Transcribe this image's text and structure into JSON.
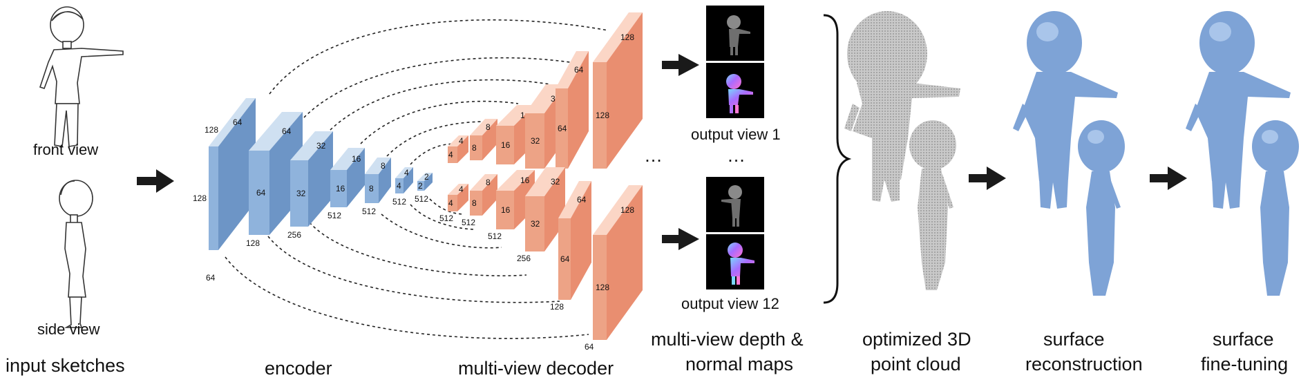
{
  "labels": {
    "input_sketches": "input sketches",
    "front_view": "front view",
    "side_view": "side view",
    "encoder": "encoder",
    "decoder": "multi-view decoder",
    "output_view_1": "output view 1",
    "output_view_12": "output view 12",
    "maps_line1": "multi-view depth &",
    "maps_line2": "normal maps",
    "pc_line1": "optimized 3D",
    "pc_line2": "point cloud",
    "sr_line1": "surface",
    "sr_line2": "reconstruction",
    "ft_line1": "surface",
    "ft_line2": "fine-tuning",
    "ellipsis": "…"
  },
  "encoder_blocks": [
    {
      "depth": "64",
      "size": "128",
      "channels": "64"
    },
    {
      "depth": "64",
      "size": "64",
      "channels": "128"
    },
    {
      "depth": "32",
      "size": "32",
      "channels": "256"
    },
    {
      "depth": "16",
      "size": "16",
      "channels": "512"
    },
    {
      "depth": "8",
      "size": "8",
      "channels": "512"
    },
    {
      "depth": "4",
      "size": "4",
      "channels": "512"
    },
    {
      "depth": "2",
      "size": "2",
      "channels": "512"
    }
  ],
  "encoder_first_top": "128",
  "decoder_top": [
    {
      "depth": "4",
      "size": "4"
    },
    {
      "depth": "8",
      "size": "8"
    },
    {
      "depth": "16",
      "size": "16"
    },
    {
      "depth": "32",
      "size": "32"
    },
    {
      "depth": "64",
      "size": "64"
    },
    {
      "depth": "128",
      "size": "128"
    }
  ],
  "decoder_bottom": [
    {
      "depth": "4",
      "size": "4",
      "channels": "512"
    },
    {
      "depth": "8",
      "size": "8",
      "channels": "512"
    },
    {
      "depth": "16",
      "size": "16",
      "channels": "512"
    },
    {
      "depth": "32",
      "size": "32",
      "channels": "256"
    },
    {
      "depth": "64",
      "size": "64",
      "channels": "128"
    },
    {
      "depth": "128",
      "size": "128",
      "channels": "64"
    }
  ],
  "colors": {
    "encoder": "#8fb3dc",
    "decoder": "#eda386",
    "mesh": "#7ea3d6",
    "cloud": "#b9b9b9"
  }
}
